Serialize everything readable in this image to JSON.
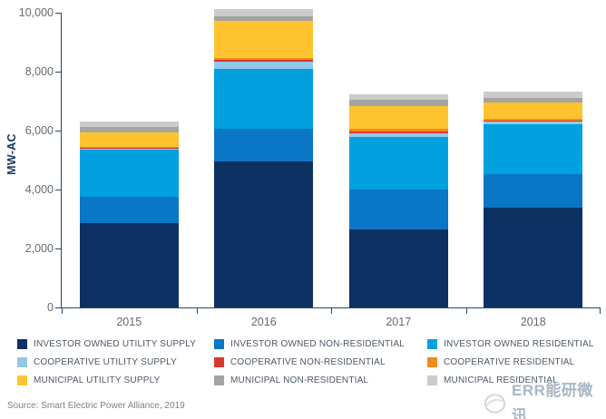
{
  "chart_data": {
    "type": "bar",
    "stacked": true,
    "title": "",
    "xlabel": "",
    "ylabel": "MW-AC",
    "ylim": [
      0,
      10000
    ],
    "grid": false,
    "legend_position": "bottom",
    "yticks": [
      {
        "value": 0,
        "label": "0"
      },
      {
        "value": 2000,
        "label": "2,000"
      },
      {
        "value": 4000,
        "label": "4,000"
      },
      {
        "value": 6000,
        "label": "6,000"
      },
      {
        "value": 8000,
        "label": "8,000"
      },
      {
        "value": 10000,
        "label": "10,000"
      }
    ],
    "categories": [
      "2015",
      "2016",
      "2017",
      "2018"
    ],
    "series": [
      {
        "name": "INVESTOR OWNED UTILITY SUPPLY",
        "color": "#0E3163",
        "values": [
          2850,
          4950,
          2650,
          3380
        ]
      },
      {
        "name": "INVESTOR OWNED NON-RESIDENTIAL",
        "color": "#0A76C6",
        "values": [
          900,
          1100,
          1350,
          1140
        ]
      },
      {
        "name": "INVESTOR OWNED RESIDENTIAL",
        "color": "#00A1DE",
        "values": [
          1600,
          2050,
          1775,
          1700
        ]
      },
      {
        "name": "COOPERATIVE UTILITY SUPPLY",
        "color": "#95C7E9",
        "values": [
          50,
          250,
          140,
          80
        ]
      },
      {
        "name": "COOPERATIVE NON-RESIDENTIAL",
        "color": "#D8392F",
        "values": [
          25,
          60,
          70,
          30
        ]
      },
      {
        "name": "COOPERATIVE RESIDENTIAL",
        "color": "#F28A1F",
        "values": [
          30,
          65,
          85,
          65
        ]
      },
      {
        "name": "MUNICIPAL UTILITY SUPPLY",
        "color": "#FEC32F",
        "values": [
          480,
          1250,
          750,
          550
        ]
      },
      {
        "name": "MUNICIPAL NON-RESIDENTIAL",
        "color": "#A4A5A2",
        "values": [
          190,
          150,
          225,
          155
        ]
      },
      {
        "name": "MUNICIPAL RESIDENTIAL",
        "color": "#CBCCC9",
        "values": [
          180,
          240,
          180,
          225
        ]
      }
    ]
  },
  "source_note": "Source: Smart Electric Power Alliance, 2019",
  "watermark": {
    "text": "ERR能研微讯"
  }
}
